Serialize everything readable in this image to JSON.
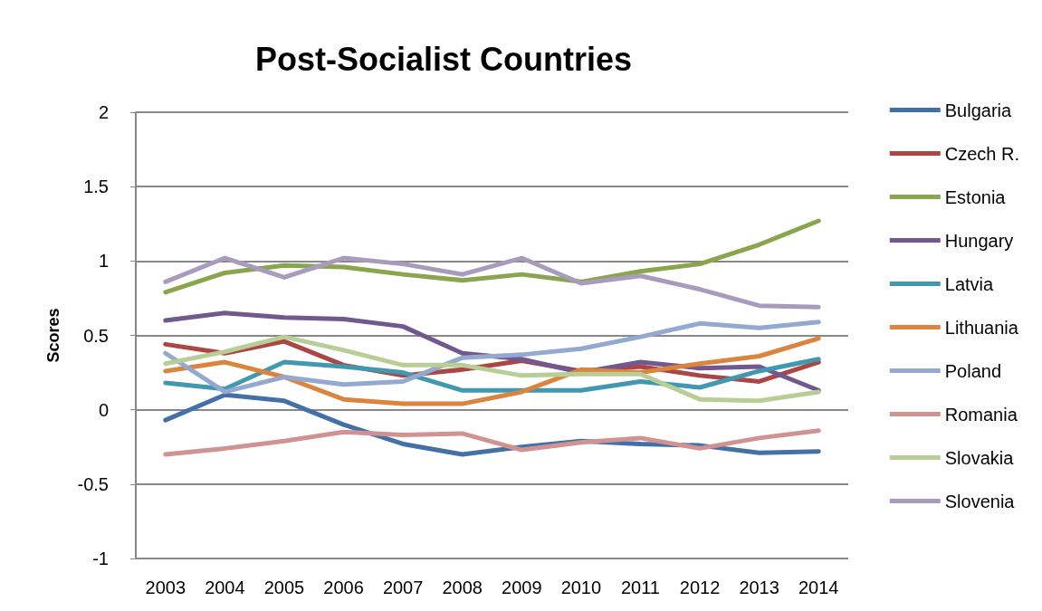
{
  "chart_data": {
    "type": "line",
    "title": "Post-Socialist Countries",
    "ylabel": "Scores",
    "categories": [
      "2003",
      "2004",
      "2005",
      "2006",
      "2007",
      "2008",
      "2009",
      "2010",
      "2011",
      "2012",
      "2013",
      "2014"
    ],
    "series": [
      {
        "name": "Bulgaria",
        "color": "#4470a8",
        "values": [
          -0.07,
          0.1,
          0.06,
          -0.1,
          -0.23,
          -0.3,
          -0.25,
          -0.21,
          -0.23,
          -0.24,
          -0.29,
          -0.28
        ]
      },
      {
        "name": "Czech R.",
        "color": "#aa4643",
        "values": [
          0.44,
          0.38,
          0.46,
          0.3,
          0.23,
          0.27,
          0.33,
          0.26,
          0.29,
          0.23,
          0.19,
          0.32
        ]
      },
      {
        "name": "Estonia",
        "color": "#89a54e",
        "values": [
          0.79,
          0.92,
          0.97,
          0.96,
          0.91,
          0.87,
          0.91,
          0.86,
          0.93,
          0.98,
          1.11,
          1.27
        ]
      },
      {
        "name": "Hungary",
        "color": "#71588f",
        "values": [
          0.6,
          0.65,
          0.62,
          0.61,
          0.56,
          0.38,
          0.34,
          0.25,
          0.32,
          0.28,
          0.29,
          0.13
        ]
      },
      {
        "name": "Latvia",
        "color": "#4198af",
        "values": [
          0.18,
          0.14,
          0.32,
          0.29,
          0.25,
          0.13,
          0.13,
          0.13,
          0.19,
          0.15,
          0.26,
          0.34
        ]
      },
      {
        "name": "Lithuania",
        "color": "#db843d",
        "values": [
          0.26,
          0.32,
          0.22,
          0.07,
          0.04,
          0.04,
          0.12,
          0.27,
          0.25,
          0.31,
          0.36,
          0.48
        ]
      },
      {
        "name": "Poland",
        "color": "#93a9cf",
        "values": [
          0.38,
          0.12,
          0.22,
          0.17,
          0.19,
          0.35,
          0.37,
          0.41,
          0.49,
          0.58,
          0.55,
          0.59
        ]
      },
      {
        "name": "Romania",
        "color": "#d19392",
        "values": [
          -0.3,
          -0.26,
          -0.21,
          -0.15,
          -0.17,
          -0.16,
          -0.27,
          -0.22,
          -0.19,
          -0.26,
          -0.19,
          -0.14
        ]
      },
      {
        "name": "Slovakia",
        "color": "#b9cd96",
        "values": [
          0.31,
          0.39,
          0.49,
          0.4,
          0.3,
          0.3,
          0.23,
          0.24,
          0.24,
          0.07,
          0.06,
          0.12
        ]
      },
      {
        "name": "Slovenia",
        "color": "#a99bbd",
        "values": [
          0.86,
          1.02,
          0.89,
          1.02,
          0.98,
          0.91,
          1.02,
          0.85,
          0.9,
          0.81,
          0.7,
          0.69
        ]
      }
    ],
    "ylim": [
      -1,
      2
    ],
    "yticks": [
      -1,
      -0.5,
      0,
      0.5,
      1,
      1.5,
      2
    ],
    "grid": "y",
    "legend": "right",
    "marker": "none",
    "line_style": "solid"
  }
}
